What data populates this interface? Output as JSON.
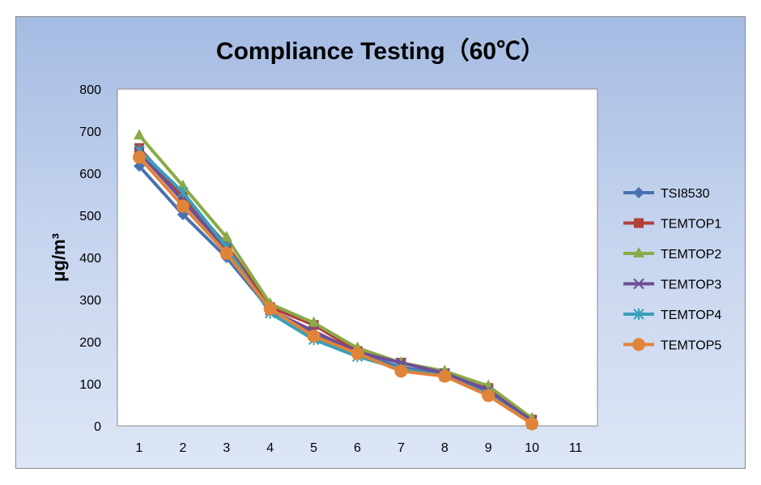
{
  "chart_data": {
    "type": "line",
    "title": "Compliance Testing（60℃）",
    "xlabel": "",
    "ylabel": "μg/m³",
    "x": [
      1,
      2,
      3,
      4,
      5,
      6,
      7,
      8,
      9,
      10
    ],
    "xticks": [
      "1",
      "2",
      "3",
      "4",
      "5",
      "6",
      "7",
      "8",
      "9",
      "10",
      "11"
    ],
    "xlim": [
      1,
      11
    ],
    "yticks": [
      "0",
      "100",
      "200",
      "300",
      "400",
      "500",
      "600",
      "700",
      "800"
    ],
    "ylim": [
      0,
      800
    ],
    "grid": false,
    "legend_position": "right",
    "series": [
      {
        "name": "TSI8530",
        "color": "#4a72b0",
        "marker": "diamond",
        "values": [
          617,
          502,
          400,
          275,
          220,
          170,
          140,
          120,
          80,
          10
        ]
      },
      {
        "name": "TEMTOP1",
        "color": "#b0403c",
        "marker": "square",
        "values": [
          660,
          545,
          430,
          282,
          240,
          178,
          150,
          125,
          90,
          15
        ]
      },
      {
        "name": "TEMTOP2",
        "color": "#8aaa48",
        "marker": "triangle",
        "values": [
          690,
          570,
          448,
          290,
          245,
          185,
          150,
          130,
          95,
          18
        ]
      },
      {
        "name": "TEMTOP3",
        "color": "#6e4e96",
        "marker": "x",
        "values": [
          650,
          535,
          420,
          275,
          225,
          175,
          150,
          125,
          85,
          12
        ]
      },
      {
        "name": "TEMTOP4",
        "color": "#3a9fba",
        "marker": "star",
        "values": [
          655,
          555,
          425,
          268,
          205,
          165,
          135,
          118,
          75,
          5
        ]
      },
      {
        "name": "TEMTOP5",
        "color": "#e0843a",
        "marker": "circle",
        "values": [
          638,
          522,
          410,
          278,
          213,
          172,
          130,
          118,
          72,
          5
        ]
      }
    ]
  }
}
